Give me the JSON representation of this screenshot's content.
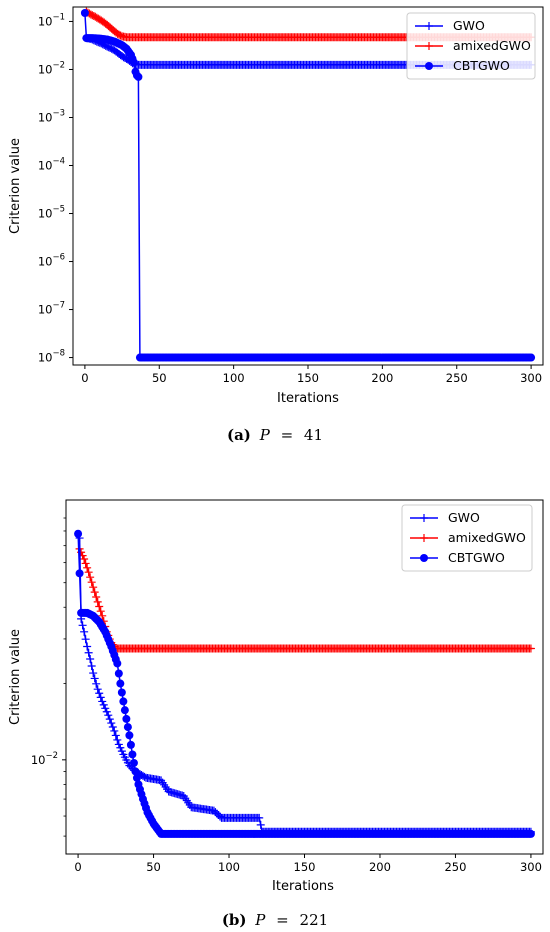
{
  "chart_data": [
    {
      "type": "line",
      "yscale": "log",
      "xlabel": "Iterations",
      "ylabel": "Criterion value",
      "xlim": [
        -8,
        308
      ],
      "ylim": [
        7e-09,
        0.2
      ],
      "xticks": [
        0,
        50,
        100,
        150,
        200,
        250,
        300
      ],
      "xtick_labels": [
        "0",
        "50",
        "100",
        "150",
        "200",
        "250",
        "300"
      ],
      "yticks": [
        1e-08,
        1e-07,
        1e-06,
        1e-05,
        0.0001,
        0.001,
        0.01,
        0.1
      ],
      "ytick_labels": [
        {
          "base": "10",
          "exp": "−8"
        },
        {
          "base": "10",
          "exp": "−7"
        },
        {
          "base": "10",
          "exp": "−6"
        },
        {
          "base": "10",
          "exp": "−5"
        },
        {
          "base": "10",
          "exp": "−4"
        },
        {
          "base": "10",
          "exp": "−3"
        },
        {
          "base": "10",
          "exp": "−2"
        },
        {
          "base": "10",
          "exp": "−1"
        }
      ],
      "grid": false,
      "legend_position": "top-right",
      "caption": {
        "label": "(a)",
        "var": "P",
        "value": "41"
      },
      "series": [
        {
          "name": "GWO",
          "color": "#0000ff",
          "marker": "plus",
          "points": [
            [
              1,
              0.045
            ],
            [
              3,
              0.044
            ],
            [
              5,
              0.042
            ],
            [
              8,
              0.038
            ],
            [
              11,
              0.035
            ],
            [
              14,
              0.031
            ],
            [
              17,
              0.028
            ],
            [
              20,
              0.025
            ],
            [
              23,
              0.021
            ],
            [
              26,
              0.018
            ],
            [
              29,
              0.016
            ],
            [
              32,
              0.0135
            ],
            [
              34,
              0.013
            ],
            [
              35,
              0.0125
            ],
            [
              300,
              0.0125
            ]
          ]
        },
        {
          "name": "amixedGWO",
          "color": "#ff0000",
          "marker": "plus",
          "points": [
            [
              1,
              0.16
            ],
            [
              4,
              0.14
            ],
            [
              7,
              0.125
            ],
            [
              10,
              0.11
            ],
            [
              13,
              0.095
            ],
            [
              16,
              0.08
            ],
            [
              19,
              0.066
            ],
            [
              22,
              0.055
            ],
            [
              25,
              0.049
            ],
            [
              28,
              0.047
            ],
            [
              300,
              0.047
            ]
          ]
        },
        {
          "name": "CBTGWO",
          "color": "#0000ff",
          "marker": "circle",
          "points": [
            [
              0,
              0.15
            ],
            [
              1,
              0.045
            ],
            [
              5,
              0.045
            ],
            [
              10,
              0.044
            ],
            [
              15,
              0.042
            ],
            [
              20,
              0.038
            ],
            [
              25,
              0.032
            ],
            [
              28,
              0.027
            ],
            [
              31,
              0.02
            ],
            [
              33,
              0.014
            ],
            [
              34,
              0.009
            ],
            [
              35,
              0.0075
            ],
            [
              36,
              0.007
            ],
            [
              37,
              1e-08
            ],
            [
              300,
              1e-08
            ]
          ]
        }
      ]
    },
    {
      "type": "line",
      "yscale": "log",
      "xlabel": "Iterations",
      "ylabel": "Criterion value",
      "xlim": [
        -8,
        308
      ],
      "ylim": [
        0.00425,
        0.106
      ],
      "xticks": [
        0,
        50,
        100,
        150,
        200,
        250,
        300
      ],
      "xtick_labels": [
        "0",
        "50",
        "100",
        "150",
        "200",
        "250",
        "300"
      ],
      "yticks": [
        0.01
      ],
      "ytick_labels": [
        {
          "base": "10",
          "exp": "−2"
        }
      ],
      "grid": false,
      "legend_position": "top-right",
      "caption": {
        "label": "(b)",
        "var": "P",
        "value": "221"
      },
      "series": [
        {
          "name": "GWO",
          "color": "#0000ff",
          "marker": "plus",
          "points": [
            [
              1,
              0.075
            ],
            [
              2,
              0.036
            ],
            [
              4,
              0.032
            ],
            [
              6,
              0.028
            ],
            [
              8,
              0.025
            ],
            [
              10,
              0.022
            ],
            [
              13,
              0.019
            ],
            [
              16,
              0.017
            ],
            [
              20,
              0.015
            ],
            [
              24,
              0.013
            ],
            [
              27,
              0.0115
            ],
            [
              30,
              0.0105
            ],
            [
              34,
              0.0095
            ],
            [
              38,
              0.009
            ],
            [
              45,
              0.0085
            ],
            [
              55,
              0.0083
            ],
            [
              60,
              0.0075
            ],
            [
              70,
              0.0072
            ],
            [
              75,
              0.0065
            ],
            [
              90,
              0.0063
            ],
            [
              95,
              0.0059
            ],
            [
              120,
              0.0059
            ],
            [
              122,
              0.0052
            ],
            [
              300,
              0.0052
            ]
          ]
        },
        {
          "name": "amixedGWO",
          "color": "#ff0000",
          "marker": "plus",
          "points": [
            [
              1,
              0.068
            ],
            [
              4,
              0.062
            ],
            [
              7,
              0.055
            ],
            [
              10,
              0.048
            ],
            [
              13,
              0.042
            ],
            [
              16,
              0.037
            ],
            [
              19,
              0.032
            ],
            [
              22,
              0.029
            ],
            [
              25,
              0.0275
            ],
            [
              300,
              0.0275
            ]
          ]
        },
        {
          "name": "CBTGWO",
          "color": "#0000ff",
          "marker": "circle",
          "points": [
            [
              0,
              0.078
            ],
            [
              2,
              0.038
            ],
            [
              6,
              0.038
            ],
            [
              10,
              0.037
            ],
            [
              14,
              0.035
            ],
            [
              18,
              0.032
            ],
            [
              22,
              0.028
            ],
            [
              26,
              0.024
            ],
            [
              28,
              0.02
            ],
            [
              30,
              0.017
            ],
            [
              32,
              0.0145
            ],
            [
              34,
              0.0125
            ],
            [
              36,
              0.0105
            ],
            [
              38,
              0.009
            ],
            [
              40,
              0.008
            ],
            [
              43,
              0.007
            ],
            [
              46,
              0.0062
            ],
            [
              50,
              0.0056
            ],
            [
              55,
              0.0051
            ],
            [
              300,
              0.0051
            ]
          ]
        }
      ]
    }
  ]
}
